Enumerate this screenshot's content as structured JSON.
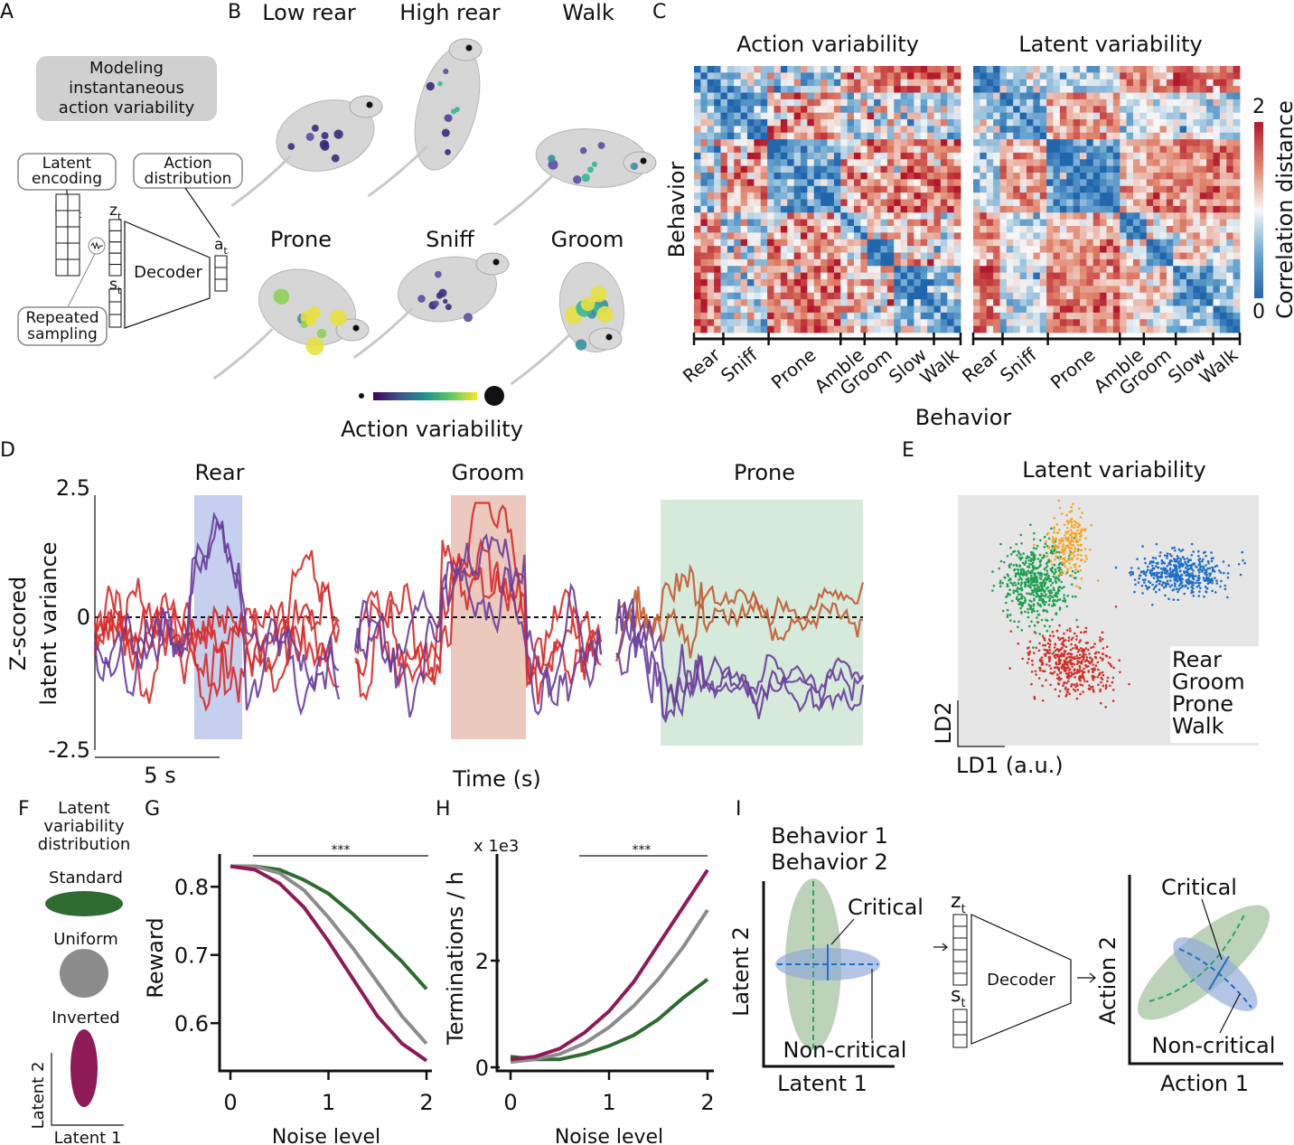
{
  "panel_labels": {
    "A": "A",
    "B": "B",
    "C": "C",
    "D": "D",
    "E": "E",
    "F": "F",
    "G": "G",
    "H": "H",
    "I": "I"
  },
  "panelA": {
    "title_lines": [
      "Modeling",
      "instantaneous",
      "action variability"
    ],
    "latent_encoding": [
      "Latent",
      "encoding"
    ],
    "action_distribution": [
      "Action",
      "distribution"
    ],
    "mu": "μ",
    "sigma": "σ",
    "sub_t": "t",
    "z": "z",
    "s": "s",
    "a": "a",
    "decoder": "Decoder",
    "repeated_sampling": [
      "Repeated",
      "sampling"
    ]
  },
  "panelB": {
    "behaviors": [
      "Low rear",
      "High rear",
      "Walk",
      "Prone",
      "Sniff",
      "Groom"
    ],
    "colorbar_label": "Action variability"
  },
  "panelC": {
    "titles": [
      "Action variability",
      "Latent variability"
    ],
    "ylabel": "Behavior",
    "xlabel": "Behavior",
    "ticks": [
      "Rear",
      "Sniff",
      "Prone",
      "Amble",
      "Groom",
      "Slow",
      "Walk"
    ],
    "colorbar_label": "Correlation distance",
    "colorbar_ticks": [
      "2",
      "0"
    ],
    "colors": {
      "low": "#2166ac",
      "mid": "#f7f7f7",
      "high": "#b2182b"
    }
  },
  "panelF": {
    "title_lines": [
      "Latent",
      "variability",
      "distribution"
    ],
    "items": [
      "Standard",
      "Uniform",
      "Inverted"
    ],
    "colors": [
      "#2e6b30",
      "#8c8c8c",
      "#8e1a5a"
    ],
    "xlabel": "Latent 1",
    "ylabel": "Latent 2"
  },
  "panelI": {
    "legend": [
      "Behavior 1",
      "Behavior 2"
    ],
    "legend_colors": [
      "#1f6fc4",
      "#2aa86b"
    ],
    "latent_x": "Latent 1",
    "latent_y": "Latent 2",
    "critical": "Critical",
    "non_critical": "Non-critical",
    "z": "z",
    "s": "s",
    "sub_t": "t",
    "decoder": "Decoder",
    "action_x": "Action 1",
    "action_y": "Action 2"
  },
  "chart_data": [
    {
      "id": "D",
      "type": "line",
      "titles": [
        "Rear",
        "Groom",
        "Prone"
      ],
      "title_colors": [
        "#2a6db5",
        "#d02a2a",
        "#2aa86b"
      ],
      "shade_colors": [
        "#c5cfee",
        "#ebc9bd",
        "#d5eadb"
      ],
      "ylabel_lines": [
        "Z-scored",
        "latent variance"
      ],
      "xlabel": "Time (s)",
      "yticks": [
        "2.5",
        "0",
        "-2.5"
      ],
      "ylim": [
        -2.5,
        2.5
      ],
      "scalebar": "5 s",
      "series_colors": {
        "red": "#d62a2a",
        "purple": "#6a3d9a",
        "orange": "#c25a30"
      }
    },
    {
      "id": "E",
      "type": "scatter",
      "title": "Latent variability",
      "xlabel": "LD1 (a.u.)",
      "ylabel": "LD2",
      "legend": [
        {
          "name": "Rear",
          "color": "#1f6fc4"
        },
        {
          "name": "Groom",
          "color": "#d03028"
        },
        {
          "name": "Prone",
          "color": "#1fa050"
        },
        {
          "name": "Walk",
          "color": "#f5a623"
        }
      ],
      "clusters": [
        {
          "name": "Rear",
          "center": [
            7.4,
            5.5
          ],
          "spread": [
            1.2,
            0.55
          ]
        },
        {
          "name": "Groom",
          "center": [
            3.8,
            2.6
          ],
          "spread": [
            1.1,
            0.9
          ]
        },
        {
          "name": "Prone",
          "center": [
            2.6,
            5.2
          ],
          "spread": [
            0.9,
            1.1
          ]
        },
        {
          "name": "Walk",
          "center": [
            3.7,
            6.5
          ],
          "spread": [
            0.6,
            0.8
          ]
        }
      ],
      "legend_position": "bottom-right"
    },
    {
      "id": "G",
      "type": "line",
      "xlabel": "Noise level",
      "ylabel": "Reward",
      "x": [
        0,
        0.25,
        0.5,
        0.75,
        1,
        1.25,
        1.5,
        1.75,
        2
      ],
      "xticks": [
        "0",
        "1",
        "2"
      ],
      "yticks": [
        "0.8",
        "0.7",
        "0.6"
      ],
      "ylim": [
        0.53,
        0.848
      ],
      "significance": "***",
      "series": [
        {
          "name": "Standard",
          "color": "#2e6b30",
          "values": [
            0.83,
            0.83,
            0.825,
            0.81,
            0.79,
            0.76,
            0.725,
            0.69,
            0.65
          ]
        },
        {
          "name": "Uniform",
          "color": "#8c8c8c",
          "values": [
            0.83,
            0.83,
            0.82,
            0.795,
            0.755,
            0.71,
            0.66,
            0.61,
            0.57
          ]
        },
        {
          "name": "Inverted",
          "color": "#8e1a5a",
          "values": [
            0.83,
            0.825,
            0.805,
            0.77,
            0.72,
            0.665,
            0.61,
            0.57,
            0.545
          ]
        }
      ]
    },
    {
      "id": "H",
      "type": "line",
      "xlabel": "Noise level",
      "ylabel": "Terminations / h",
      "multiplier": "x 1e3",
      "x": [
        0,
        0.25,
        0.5,
        0.75,
        1,
        1.25,
        1.5,
        1.75,
        2
      ],
      "xticks": [
        "0",
        "1",
        "2"
      ],
      "yticks": [
        "0",
        "2"
      ],
      "ylim": [
        0,
        4.0
      ],
      "significance": "***",
      "series": [
        {
          "name": "Standard",
          "color": "#2e6b30",
          "values": [
            0.2,
            0.15,
            0.15,
            0.25,
            0.4,
            0.6,
            0.9,
            1.3,
            1.65
          ]
        },
        {
          "name": "Uniform",
          "color": "#8c8c8c",
          "values": [
            0.1,
            0.15,
            0.25,
            0.45,
            0.75,
            1.15,
            1.65,
            2.25,
            2.95
          ]
        },
        {
          "name": "Inverted",
          "color": "#8e1a5a",
          "values": [
            0.15,
            0.2,
            0.35,
            0.65,
            1.05,
            1.6,
            2.3,
            3.0,
            3.7
          ]
        }
      ]
    }
  ]
}
